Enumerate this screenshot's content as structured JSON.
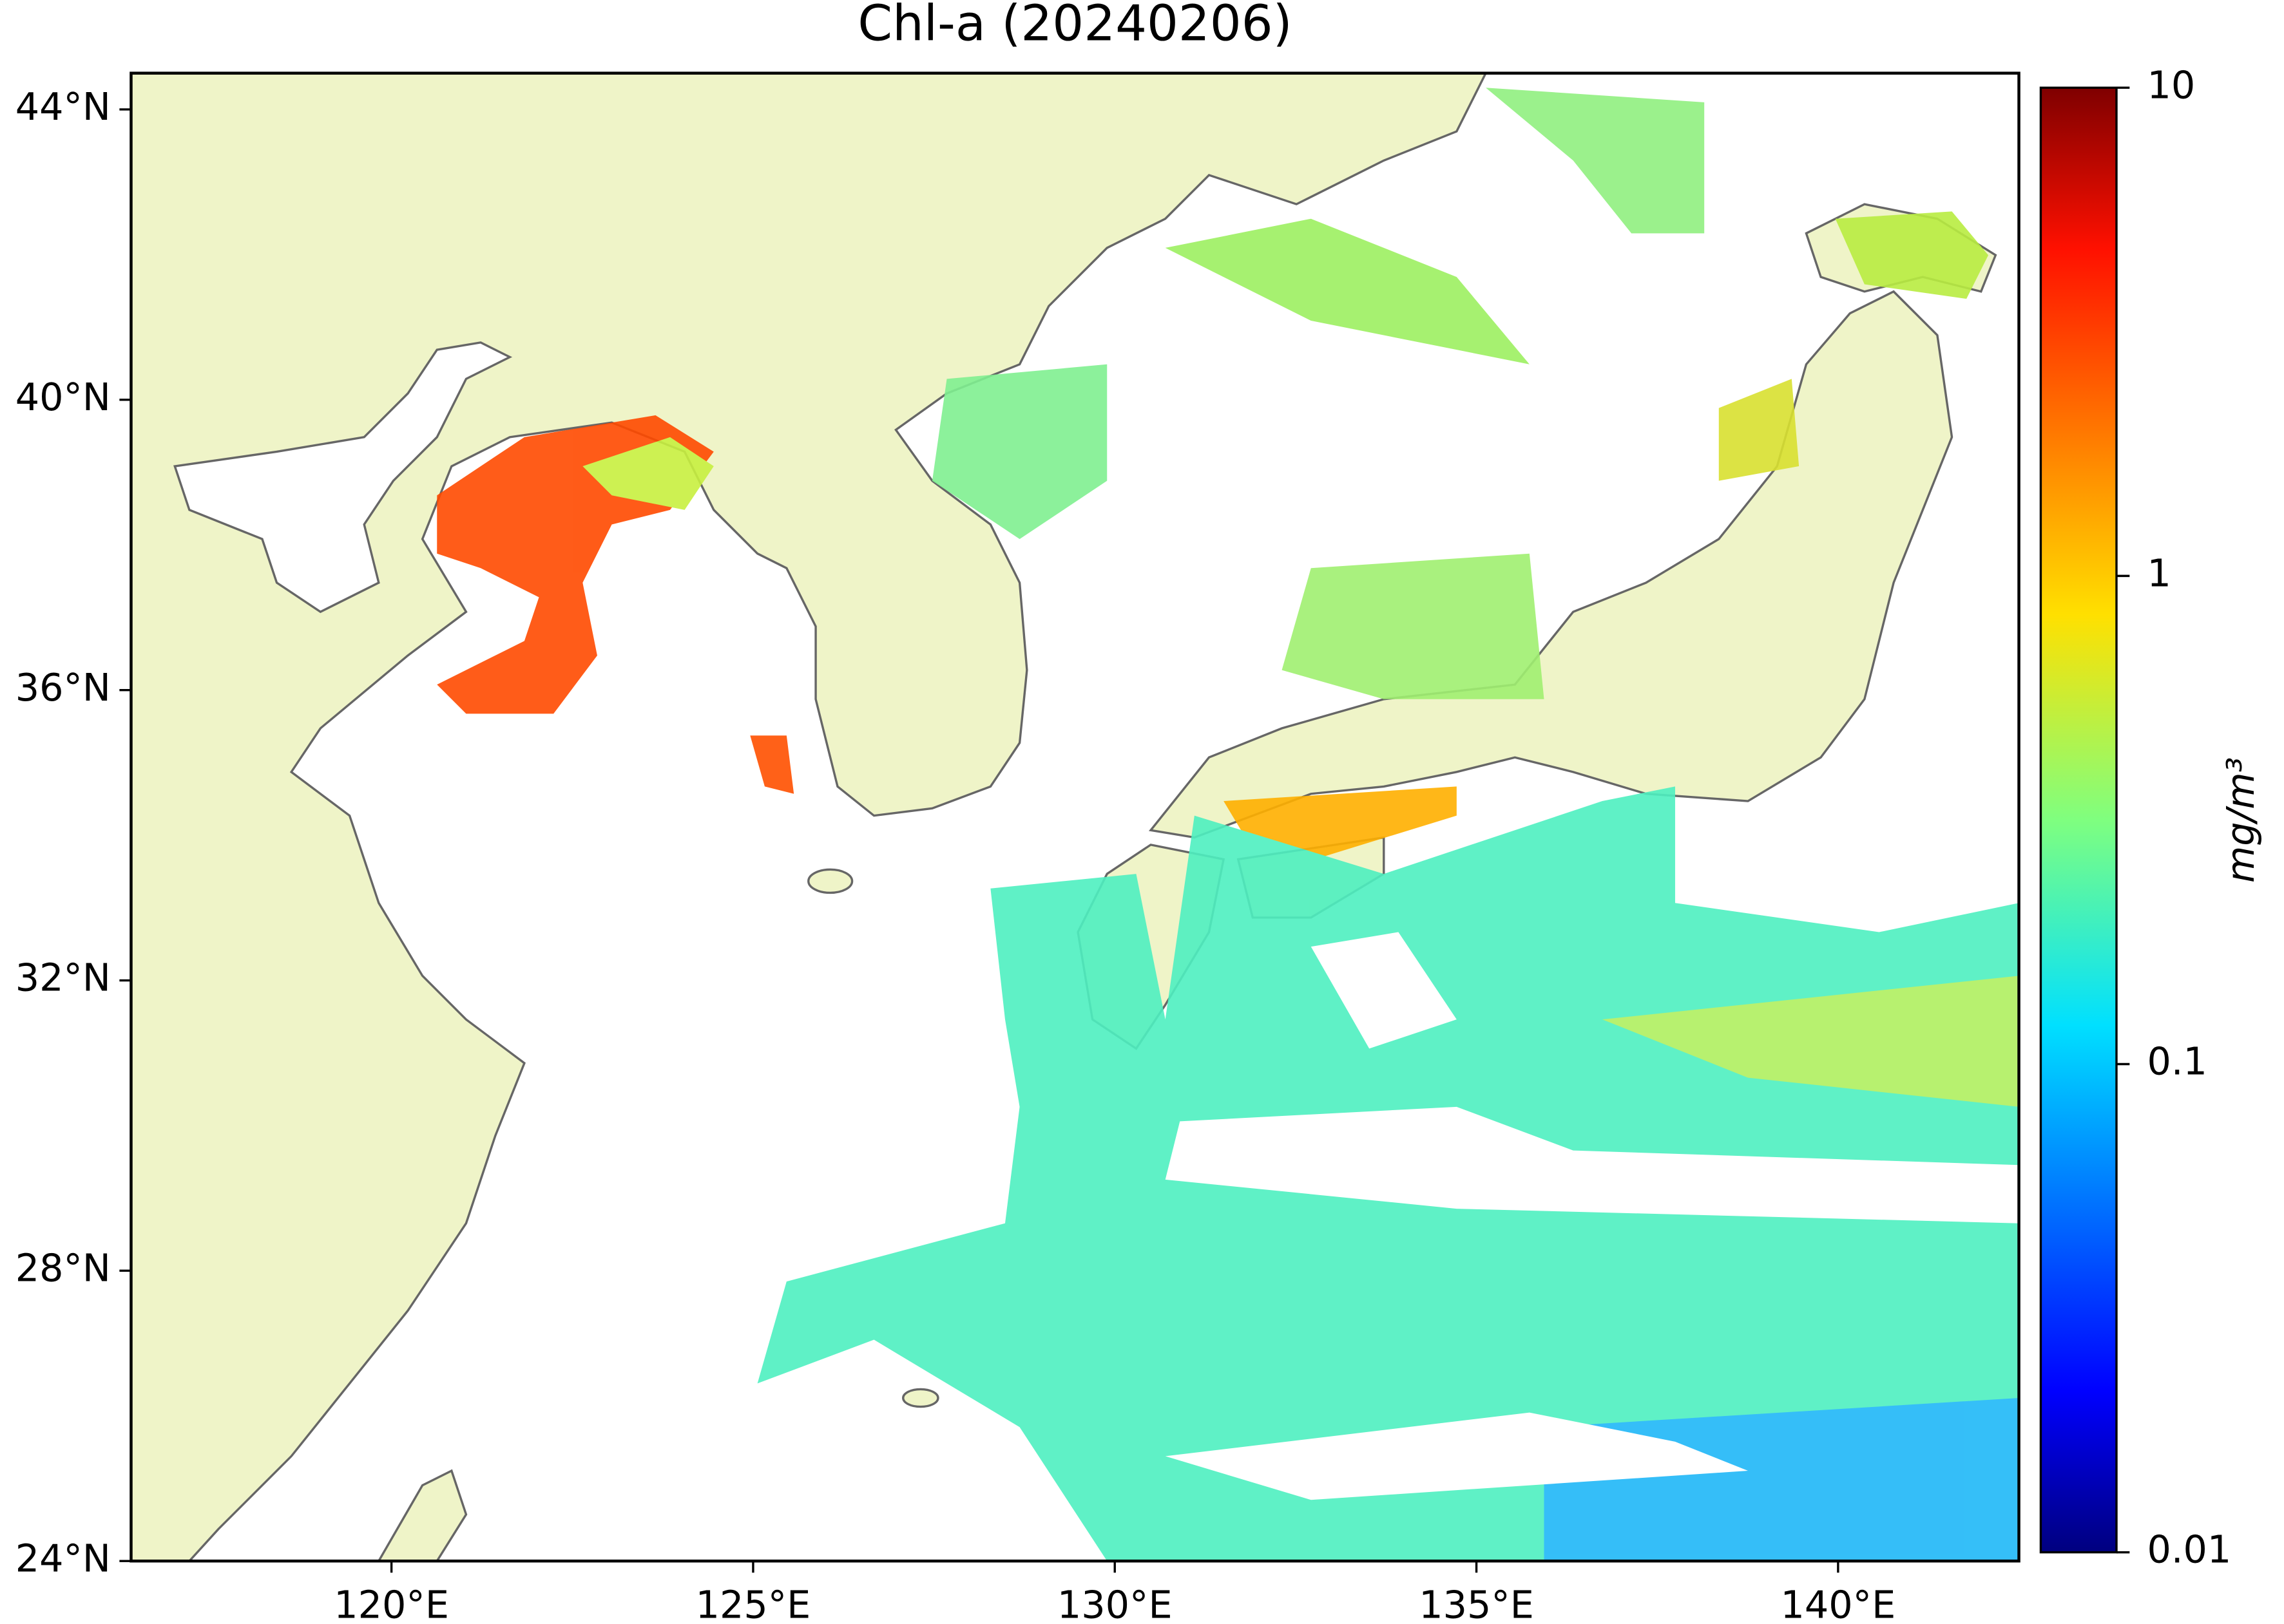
{
  "chart_data": {
    "type": "map",
    "title": "Chl-a (20240206)",
    "xlim": [
      116.4,
      142.5
    ],
    "ylim": [
      24,
      44.5
    ],
    "xticks": [
      {
        "value": 120,
        "label": "120°E"
      },
      {
        "value": 125,
        "label": "125°E"
      },
      {
        "value": 130,
        "label": "130°E"
      },
      {
        "value": 135,
        "label": "135°E"
      },
      {
        "value": 140,
        "label": "140°E"
      }
    ],
    "yticks": [
      {
        "value": 24,
        "label": "24°N"
      },
      {
        "value": 28,
        "label": "28°N"
      },
      {
        "value": 32,
        "label": "32°N"
      },
      {
        "value": 36,
        "label": "36°N"
      },
      {
        "value": 40,
        "label": "40°N"
      },
      {
        "value": 44,
        "label": "44°N"
      }
    ],
    "colorbar": {
      "label": "mg/m³",
      "log_scale": true,
      "lim": [
        0.01,
        10
      ],
      "ticks": [
        0.01,
        0.1,
        1,
        10
      ],
      "colormap": "jet"
    }
  }
}
